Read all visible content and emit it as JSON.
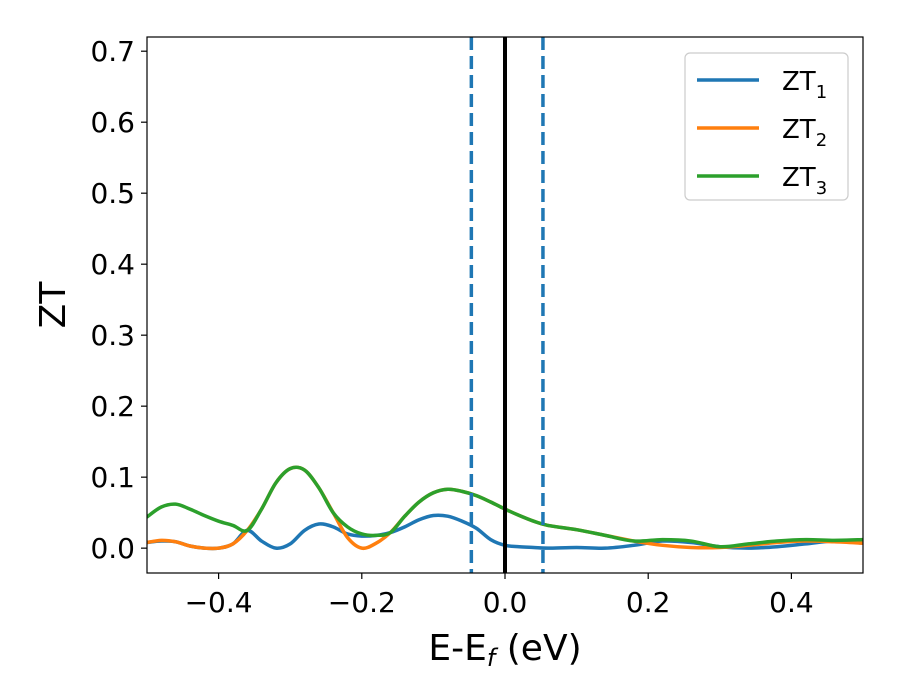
{
  "chart_data": {
    "type": "line",
    "xlabel_main": "E-E",
    "xlabel_sub": "f",
    "xlabel_unit": " (eV)",
    "ylabel": "ZT",
    "xlim": [
      -0.5,
      0.5
    ],
    "ylim": [
      -0.035,
      0.72
    ],
    "x_ticks": [
      -0.4,
      -0.2,
      0.0,
      0.2,
      0.4
    ],
    "x_tick_labels": [
      "−0.4",
      "−0.2",
      "0.0",
      "0.2",
      "0.4"
    ],
    "y_ticks": [
      0.0,
      0.1,
      0.2,
      0.3,
      0.4,
      0.5,
      0.6,
      0.7
    ],
    "y_tick_labels": [
      "0.0",
      "0.1",
      "0.2",
      "0.3",
      "0.4",
      "0.5",
      "0.6",
      "0.7"
    ],
    "legend_position": "top-right",
    "grid": false,
    "vertical_lines": [
      {
        "x": -0.047,
        "style": "dashed",
        "color": "#1f77b4"
      },
      {
        "x": 0.0,
        "style": "solid",
        "color": "#000000"
      },
      {
        "x": 0.053,
        "style": "dashed",
        "color": "#1f77b4"
      }
    ],
    "series": [
      {
        "name": "ZT",
        "name_sub": "1",
        "color": "#1f77b4",
        "x": [
          -0.5,
          -0.48,
          -0.46,
          -0.44,
          -0.42,
          -0.4,
          -0.38,
          -0.36,
          -0.34,
          -0.32,
          -0.3,
          -0.28,
          -0.26,
          -0.24,
          -0.22,
          -0.2,
          -0.18,
          -0.16,
          -0.14,
          -0.12,
          -0.1,
          -0.08,
          -0.06,
          -0.04,
          -0.02,
          0.0,
          0.02,
          0.04,
          0.06,
          0.1,
          0.14,
          0.18,
          0.22,
          0.26,
          0.3,
          0.34,
          0.38,
          0.42,
          0.46,
          0.5
        ],
        "y": [
          0.008,
          0.01,
          0.009,
          0.003,
          0.0,
          0.0,
          0.006,
          0.025,
          0.01,
          0.0,
          0.006,
          0.025,
          0.034,
          0.03,
          0.02,
          0.017,
          0.018,
          0.022,
          0.03,
          0.04,
          0.046,
          0.045,
          0.038,
          0.028,
          0.012,
          0.004,
          0.002,
          0.001,
          0.0,
          0.001,
          0.0,
          0.004,
          0.01,
          0.008,
          0.002,
          0.0,
          0.002,
          0.006,
          0.01,
          0.007
        ]
      },
      {
        "name": "ZT",
        "name_sub": "2",
        "color": "#ff7f0e",
        "x": [
          -0.5,
          -0.48,
          -0.46,
          -0.44,
          -0.42,
          -0.4,
          -0.38,
          -0.36,
          -0.34,
          -0.32,
          -0.3,
          -0.28,
          -0.26,
          -0.24,
          -0.22,
          -0.2,
          -0.18,
          -0.16,
          -0.14,
          -0.12,
          -0.1,
          -0.08,
          -0.06,
          -0.04,
          -0.02,
          0.0,
          0.02,
          0.04,
          0.06,
          0.1,
          0.14,
          0.18,
          0.22,
          0.26,
          0.3,
          0.34,
          0.38,
          0.42,
          0.46,
          0.5
        ],
        "y": [
          0.008,
          0.011,
          0.009,
          0.003,
          0.0,
          0.0,
          0.006,
          0.025,
          0.055,
          0.092,
          0.112,
          0.11,
          0.085,
          0.05,
          0.015,
          0.0,
          0.007,
          0.022,
          0.045,
          0.065,
          0.078,
          0.083,
          0.08,
          0.074,
          0.065,
          0.055,
          0.046,
          0.038,
          0.032,
          0.026,
          0.018,
          0.01,
          0.004,
          0.001,
          0.001,
          0.004,
          0.008,
          0.01,
          0.009,
          0.007
        ]
      },
      {
        "name": "ZT",
        "name_sub": "3",
        "color": "#2ca02c",
        "x": [
          -0.5,
          -0.48,
          -0.46,
          -0.44,
          -0.42,
          -0.4,
          -0.38,
          -0.36,
          -0.34,
          -0.32,
          -0.3,
          -0.28,
          -0.26,
          -0.24,
          -0.22,
          -0.2,
          -0.18,
          -0.16,
          -0.14,
          -0.12,
          -0.1,
          -0.08,
          -0.06,
          -0.04,
          -0.02,
          0.0,
          0.02,
          0.04,
          0.06,
          0.1,
          0.14,
          0.18,
          0.22,
          0.26,
          0.3,
          0.34,
          0.38,
          0.42,
          0.46,
          0.5
        ],
        "y": [
          0.044,
          0.058,
          0.062,
          0.055,
          0.046,
          0.038,
          0.032,
          0.025,
          0.055,
          0.092,
          0.112,
          0.11,
          0.085,
          0.05,
          0.03,
          0.02,
          0.018,
          0.022,
          0.045,
          0.065,
          0.078,
          0.083,
          0.08,
          0.074,
          0.065,
          0.055,
          0.046,
          0.038,
          0.032,
          0.026,
          0.018,
          0.01,
          0.012,
          0.01,
          0.002,
          0.006,
          0.01,
          0.012,
          0.011,
          0.012
        ]
      }
    ]
  }
}
